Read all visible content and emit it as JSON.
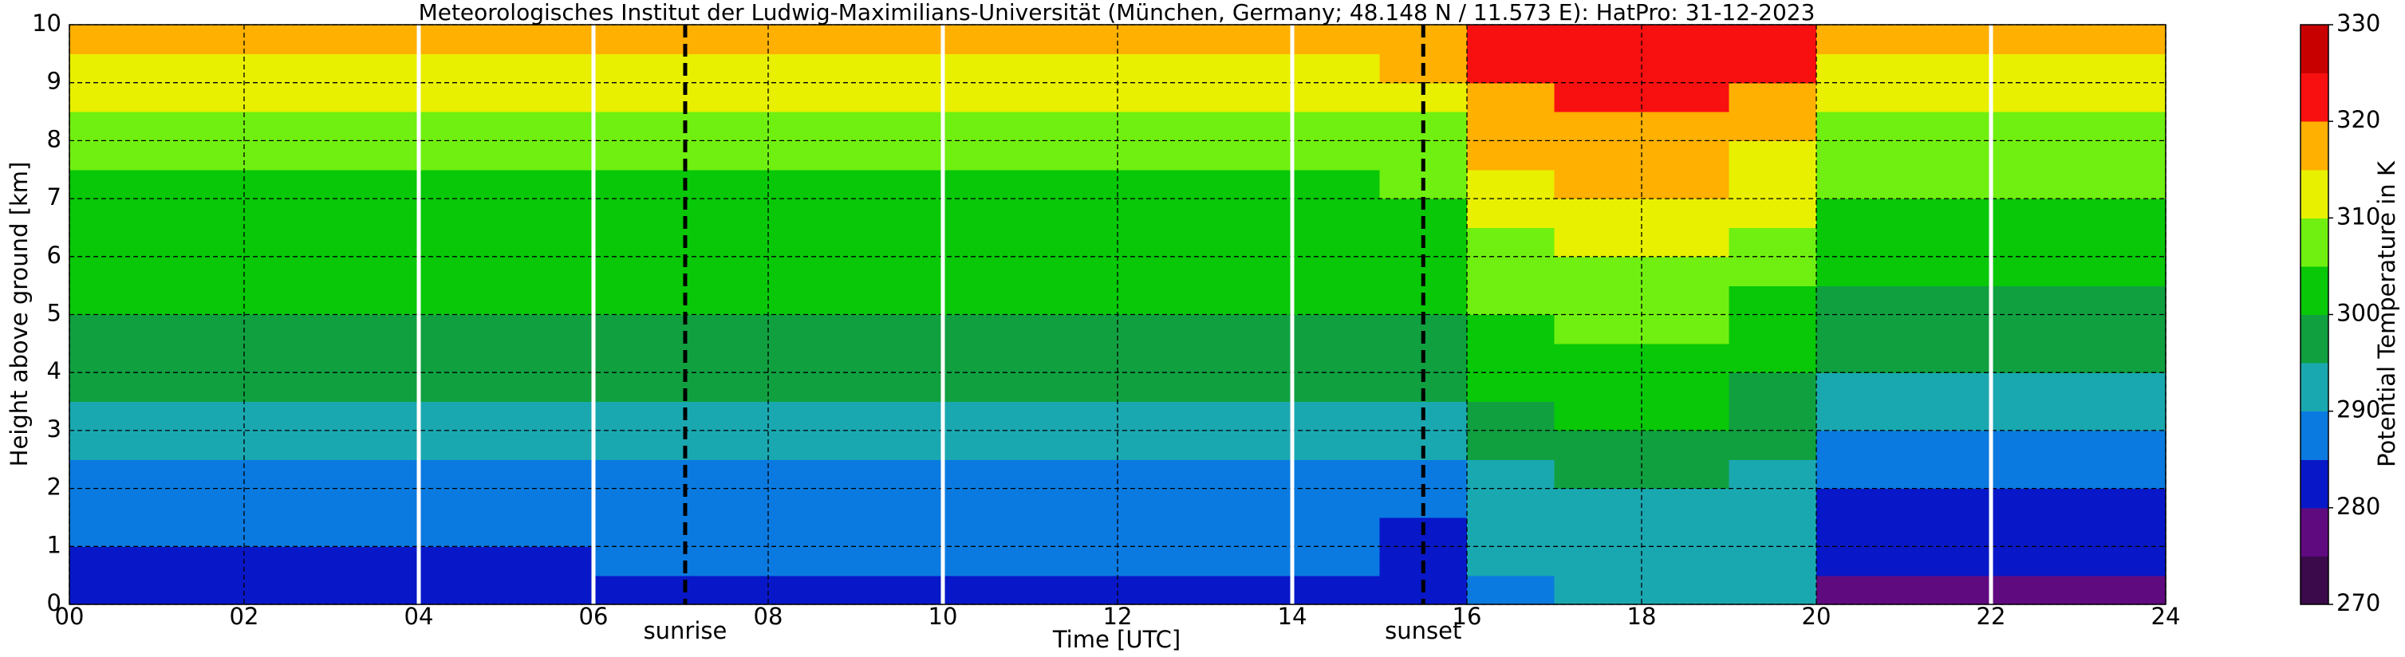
{
  "chart_data": {
    "type": "heatmap",
    "title": "Meteorologisches Institut der Ludwig-Maximilians-Universität (München, Germany; 48.148 N / 11.573 E):    HatPro: 31-12-2023",
    "x_label": "Time [UTC]",
    "y_label": "Height above ground [km]",
    "colorbar_label": "Potential Temperature in K",
    "xlim": [
      0,
      24
    ],
    "ylim": [
      0,
      10
    ],
    "xticks": [
      {
        "value": 0,
        "label": "00"
      },
      {
        "value": 2,
        "label": "02"
      },
      {
        "value": 4,
        "label": "04"
      },
      {
        "value": 6,
        "label": "06"
      },
      {
        "value": 8,
        "label": "08"
      },
      {
        "value": 10,
        "label": "10"
      },
      {
        "value": 12,
        "label": "12"
      },
      {
        "value": 14,
        "label": "14"
      },
      {
        "value": 16,
        "label": "16"
      },
      {
        "value": 18,
        "label": "18"
      },
      {
        "value": 20,
        "label": "20"
      },
      {
        "value": 22,
        "label": "22"
      },
      {
        "value": 24,
        "label": "24"
      }
    ],
    "yticks": [
      0,
      1,
      2,
      3,
      4,
      5,
      6,
      7,
      8,
      9,
      10
    ],
    "grid": true,
    "clim": [
      270,
      330
    ],
    "cticks": [
      270,
      280,
      290,
      300,
      310,
      320,
      330
    ],
    "color_levels": [
      270,
      275,
      280,
      285,
      290,
      295,
      300,
      305,
      310,
      315,
      320,
      325,
      330
    ],
    "colors": [
      "#3a0a4a",
      "#600a80",
      "#0818c8",
      "#0a7ae0",
      "#1aa8b0",
      "#10a040",
      "#08c808",
      "#70f010",
      "#e8f000",
      "#ffb000",
      "#f81010",
      "#c80000"
    ],
    "gap_lines": [
      4,
      6,
      10,
      14,
      22
    ],
    "annotations": [
      {
        "text": "sunrise",
        "x": 7.05
      },
      {
        "text": "sunset",
        "x": 15.5
      }
    ],
    "x": [
      0.5,
      1.5,
      2.5,
      3.5,
      4.5,
      5.5,
      6.5,
      7.5,
      8.5,
      9.5,
      10.5,
      11.5,
      12.5,
      13.5,
      14.5,
      15.5,
      16.5,
      17.5,
      18.5,
      19.5,
      20.5,
      21.5,
      22.5,
      23.5
    ],
    "y": [
      0.25,
      0.75,
      1.25,
      1.75,
      2.25,
      2.75,
      3.25,
      3.75,
      4.25,
      4.75,
      5.25,
      5.75,
      6.25,
      6.75,
      7.25,
      7.75,
      8.25,
      8.75,
      9.25,
      9.75
    ],
    "z": [
      [
        281,
        284,
        286,
        287,
        289,
        291,
        293,
        296,
        298,
        299,
        300,
        301,
        302,
        303,
        304,
        306,
        308,
        311,
        314,
        318
      ],
      [
        281,
        284,
        286,
        287,
        289,
        291,
        293,
        296,
        298,
        299,
        300,
        301,
        302,
        303,
        304,
        306,
        308,
        311,
        314,
        318
      ],
      [
        281,
        284,
        286,
        287,
        289,
        291,
        293,
        296,
        298,
        299,
        300,
        301,
        302,
        303,
        304,
        306,
        308,
        311,
        314,
        318
      ],
      [
        281,
        284,
        286,
        287,
        289,
        291,
        293,
        296,
        298,
        299,
        300,
        301,
        302,
        303,
        304,
        306,
        308,
        311,
        314,
        318
      ],
      [
        281,
        284,
        286,
        287,
        289,
        291,
        293,
        296,
        298,
        299,
        300,
        301,
        302,
        303,
        304,
        306,
        308,
        311,
        314,
        318
      ],
      [
        281,
        284,
        286,
        287,
        289,
        291,
        293,
        296,
        298,
        299,
        300,
        301,
        302,
        303,
        304,
        306,
        308,
        311,
        314,
        318
      ],
      [
        282,
        285,
        286,
        287,
        289,
        291,
        293,
        296,
        298,
        299,
        300,
        301,
        302,
        303,
        304,
        306,
        308,
        311,
        314,
        318
      ],
      [
        282,
        285,
        286,
        287,
        289,
        291,
        293,
        296,
        298,
        299,
        300,
        301,
        302,
        303,
        304,
        306,
        308,
        311,
        314,
        318
      ],
      [
        282,
        285,
        286,
        287,
        289,
        291,
        293,
        296,
        298,
        299,
        300,
        301,
        302,
        303,
        304,
        306,
        308,
        311,
        314,
        318
      ],
      [
        282,
        285,
        286,
        287,
        289,
        291,
        293,
        296,
        298,
        299,
        300,
        301,
        302,
        303,
        304,
        306,
        308,
        311,
        314,
        318
      ],
      [
        283,
        285,
        286,
        287,
        289,
        291,
        293,
        296,
        298,
        299,
        300,
        301,
        302,
        303,
        304,
        306,
        308,
        311,
        314,
        318
      ],
      [
        283,
        285,
        286,
        287,
        289,
        291,
        293,
        296,
        298,
        299,
        300,
        301,
        302,
        303,
        304,
        306,
        308,
        311,
        314,
        318
      ],
      [
        283,
        285,
        286,
        287,
        289,
        291,
        293,
        296,
        298,
        299,
        300,
        301,
        302,
        303,
        304,
        306,
        308,
        311,
        314,
        318
      ],
      [
        283,
        285,
        286,
        287,
        289,
        291,
        293,
        296,
        298,
        299,
        300,
        301,
        302,
        303,
        304,
        306,
        308,
        311,
        314,
        318
      ],
      [
        282,
        285,
        286,
        287,
        289,
        291,
        293,
        296,
        298,
        299,
        300,
        301,
        302,
        303,
        304,
        306,
        308,
        311,
        314,
        318
      ],
      [
        281,
        282,
        284,
        286,
        288,
        290,
        292,
        295,
        297,
        299,
        300,
        301,
        302,
        303,
        305,
        307,
        309,
        312,
        315,
        319
      ],
      [
        289,
        290,
        291,
        292,
        294,
        296,
        298,
        300,
        301,
        303,
        305,
        307,
        309,
        311,
        313,
        315,
        317,
        319,
        321,
        323
      ],
      [
        292,
        292,
        293,
        294,
        296,
        298,
        300,
        302,
        303,
        305,
        307,
        309,
        311,
        313,
        315,
        317,
        319,
        321,
        323,
        324
      ],
      [
        292,
        292,
        293,
        294,
        296,
        298,
        300,
        302,
        303,
        305,
        307,
        309,
        311,
        313,
        315,
        317,
        319,
        321,
        323,
        324
      ],
      [
        290,
        290,
        291,
        292,
        294,
        296,
        297,
        299,
        301,
        302,
        304,
        306,
        308,
        310,
        312,
        314,
        316,
        318,
        320,
        322
      ],
      [
        278,
        280,
        281,
        282,
        285,
        288,
        291,
        293,
        295,
        297,
        299,
        300,
        302,
        304,
        305,
        306,
        308,
        311,
        314,
        318
      ],
      [
        278,
        280,
        281,
        282,
        285,
        288,
        291,
        293,
        295,
        297,
        299,
        300,
        302,
        304,
        305,
        306,
        308,
        311,
        314,
        318
      ],
      [
        278,
        280,
        281,
        282,
        285,
        288,
        291,
        293,
        295,
        297,
        299,
        300,
        302,
        304,
        305,
        306,
        308,
        311,
        314,
        318
      ],
      [
        278,
        280,
        281,
        282,
        285,
        288,
        291,
        293,
        295,
        297,
        299,
        300,
        302,
        304,
        305,
        306,
        308,
        311,
        314,
        318
      ]
    ]
  }
}
